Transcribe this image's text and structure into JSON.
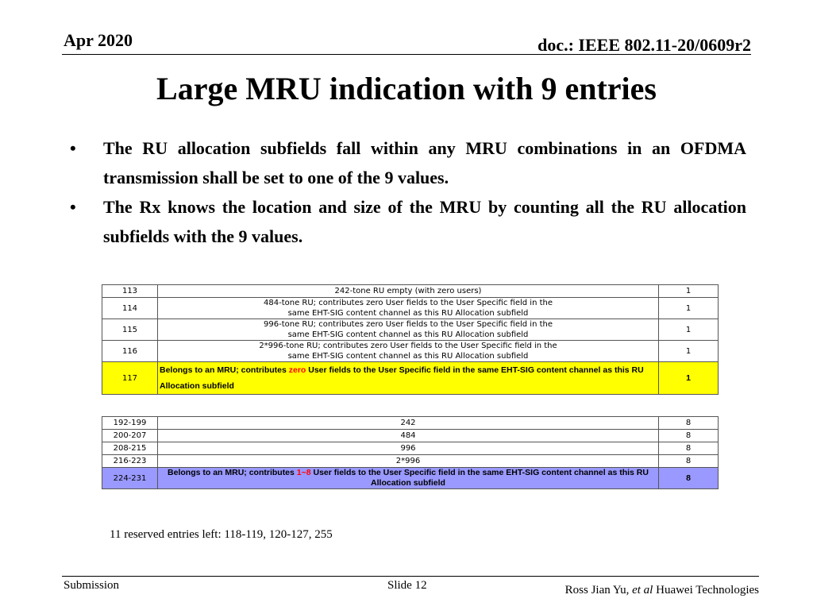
{
  "header": {
    "date": "Apr 2020",
    "doc": "doc.: IEEE 802.11-20/0609r2"
  },
  "title": "Large MRU indication with 9 entries",
  "bullets": [
    "The RU allocation subfields fall within any MRU combinations in an OFDMA transmission shall be set to one of the 9 values.",
    "The Rx knows the location and size of the MRU by counting all the RU allocation subfields with the 9 values."
  ],
  "table1": {
    "rows": [
      {
        "idx": "113",
        "desc_line1": "242-tone RU empty (with zero users)",
        "desc_line2": "",
        "count": "1"
      },
      {
        "idx": "114",
        "desc_line1": "484-tone RU; contributes zero User fields to the User Specific field in the",
        "desc_line2": "same EHT-SIG content channel as this RU Allocation subfield",
        "count": "1"
      },
      {
        "idx": "115",
        "desc_line1": "996-tone RU; contributes zero User fields to the User Specific field in the",
        "desc_line2": "same EHT-SIG content channel as this RU Allocation subfield",
        "count": "1"
      },
      {
        "idx": "116",
        "desc_line1": "2*996-tone RU; contributes zero User fields to the User Specific field in the",
        "desc_line2": "same EHT-SIG content channel as this RU Allocation subfield",
        "count": "1"
      }
    ],
    "highlight": {
      "idx": "117",
      "desc_pre": "Belongs to an MRU; contributes ",
      "desc_red": "zero",
      "desc_post": " User fields to the User Specific field in the same EHT-SIG content channel as this RU Allocation subfield",
      "count": "1",
      "color": "#ffff00"
    }
  },
  "table2": {
    "rows": [
      {
        "idx": "192-199",
        "desc": "242",
        "count": "8"
      },
      {
        "idx": "200-207",
        "desc": "484",
        "count": "8"
      },
      {
        "idx": "208-215",
        "desc": "996",
        "count": "8"
      },
      {
        "idx": "216-223",
        "desc": "2*996",
        "count": "8"
      }
    ],
    "highlight": {
      "idx": "224-231",
      "desc_pre": "Belongs to an MRU; contributes ",
      "desc_red": "1~8",
      "desc_post": " User fields to the User Specific field in the same EHT-SIG content channel as this RU Allocation subfield",
      "count": "8",
      "color": "#9999ff"
    }
  },
  "note": "11 reserved entries left: 118-119, 120-127, 255",
  "footer": {
    "left": "Submission",
    "slide": "Slide 12",
    "author_name": "Ross Jian Yu, ",
    "author_etal": "et al",
    "author_org": " Huawei Technologies"
  }
}
